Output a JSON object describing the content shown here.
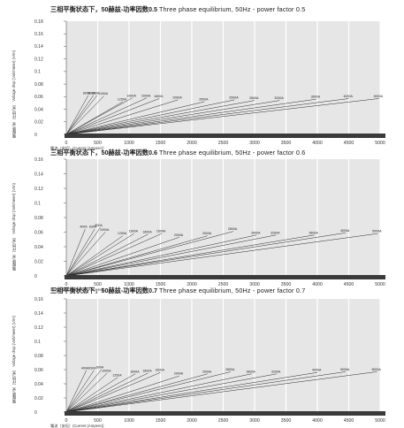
{
  "chart_data": [
    {
      "type": "line",
      "title_cn": "三相平衡状态下，50赫兹-功率因数0.5",
      "title_en": "Three phase equilibrium, 50Hz - power factor 0.5",
      "ylabel_cn": "電壓降/米（伏特/米）",
      "ylabel_en": "Voltage drop (Volt/meter) (V/m)",
      "xlabel": "電流（安培）(Current (Ampere))",
      "xlim": [
        0,
        5000
      ],
      "ylim": [
        0,
        0.18
      ],
      "xticks": [
        "0",
        "500",
        "1000",
        "1500",
        "2000",
        "2500",
        "3000",
        "3500",
        "4000",
        "4500",
        "5000"
      ],
      "yticks": [
        "0",
        "0.02",
        "0.04",
        "0.06",
        "0.08",
        "0.1",
        "0.12",
        "0.14",
        "0.16",
        "0.18"
      ],
      "series": [
        {
          "name": "800A",
          "x": [
            0,
            350
          ],
          "y": [
            0,
            0.062
          ]
        },
        {
          "name": "630A",
          "x": [
            0,
            430
          ],
          "y": [
            0,
            0.062
          ]
        },
        {
          "name": "800A",
          "x": [
            0,
            490
          ],
          "y": [
            0,
            0.062
          ]
        },
        {
          "name": "1000A",
          "x": [
            0,
            600
          ],
          "y": [
            0,
            0.061
          ]
        },
        {
          "name": "1250A",
          "x": [
            0,
            900
          ],
          "y": [
            0,
            0.052
          ]
        },
        {
          "name": "1600A",
          "x": [
            0,
            1050
          ],
          "y": [
            0,
            0.058
          ]
        },
        {
          "name": "1600A",
          "x": [
            0,
            1280
          ],
          "y": [
            0,
            0.058
          ]
        },
        {
          "name": "1600A",
          "x": [
            0,
            1480
          ],
          "y": [
            0,
            0.057
          ]
        },
        {
          "name": "2000A",
          "x": [
            0,
            1780
          ],
          "y": [
            0,
            0.055
          ]
        },
        {
          "name": "2500A",
          "x": [
            0,
            2200
          ],
          "y": [
            0,
            0.052
          ]
        },
        {
          "name": "2500A",
          "x": [
            0,
            2680
          ],
          "y": [
            0,
            0.055
          ]
        },
        {
          "name": "2800A",
          "x": [
            0,
            3000
          ],
          "y": [
            0,
            0.054
          ]
        },
        {
          "name": "3200A",
          "x": [
            0,
            3400
          ],
          "y": [
            0,
            0.054
          ]
        },
        {
          "name": "3600A",
          "x": [
            0,
            3980
          ],
          "y": [
            0,
            0.056
          ]
        },
        {
          "name": "4000A",
          "x": [
            0,
            4500
          ],
          "y": [
            0,
            0.057
          ]
        },
        {
          "name": "5000A",
          "x": [
            0,
            4980
          ],
          "y": [
            0,
            0.057
          ]
        }
      ]
    },
    {
      "type": "line",
      "title_cn": "三相平衡状态下，50赫兹-功率因数0.6",
      "title_en": "Three phase equilibrium, 50Hz - power factor 0.6",
      "ylabel_cn": "電壓降/米（伏特/米）",
      "ylabel_en": "Voltage drop (Volt/meter) (V/m)",
      "xlabel": "電流（安培）(Current (Ampere))",
      "xlim": [
        0,
        5000
      ],
      "ylim": [
        0,
        0.16
      ],
      "xticks": [
        "0",
        "500",
        "1000",
        "1500",
        "2000",
        "2500",
        "3000",
        "3500",
        "4000",
        "4500",
        "5000"
      ],
      "yticks": [
        "0",
        "0.02",
        "0.04",
        "0.06",
        "0.08",
        "0.1",
        "0.12",
        "0.14",
        "0.16"
      ],
      "series": [
        {
          "name": "400A",
          "x": [
            0,
            300
          ],
          "y": [
            0,
            0.064
          ]
        },
        {
          "name": "630A",
          "x": [
            0,
            450
          ],
          "y": [
            0,
            0.064
          ]
        },
        {
          "name": "800A",
          "x": [
            0,
            540
          ],
          "y": [
            0,
            0.066
          ]
        },
        {
          "name": "1000A",
          "x": [
            0,
            620
          ],
          "y": [
            0,
            0.06
          ]
        },
        {
          "name": "1250A",
          "x": [
            0,
            900
          ],
          "y": [
            0,
            0.055
          ]
        },
        {
          "name": "1600A",
          "x": [
            0,
            1080
          ],
          "y": [
            0,
            0.058
          ]
        },
        {
          "name": "1600A",
          "x": [
            0,
            1300
          ],
          "y": [
            0,
            0.057
          ]
        },
        {
          "name": "1600A",
          "x": [
            0,
            1520
          ],
          "y": [
            0,
            0.058
          ]
        },
        {
          "name": "2000A",
          "x": [
            0,
            1800
          ],
          "y": [
            0,
            0.053
          ]
        },
        {
          "name": "2500A",
          "x": [
            0,
            2250
          ],
          "y": [
            0,
            0.055
          ]
        },
        {
          "name": "2800A",
          "x": [
            0,
            2660
          ],
          "y": [
            0,
            0.061
          ]
        },
        {
          "name": "2800A",
          "x": [
            0,
            3030
          ],
          "y": [
            0,
            0.056
          ]
        },
        {
          "name": "3200A",
          "x": [
            0,
            3340
          ],
          "y": [
            0,
            0.056
          ]
        },
        {
          "name": "3600A",
          "x": [
            0,
            3950
          ],
          "y": [
            0,
            0.056
          ]
        },
        {
          "name": "4000A",
          "x": [
            0,
            4450
          ],
          "y": [
            0,
            0.059
          ]
        },
        {
          "name": "5000A",
          "x": [
            0,
            4960
          ],
          "y": [
            0,
            0.058
          ]
        }
      ]
    },
    {
      "type": "line",
      "title_cn": "三相平衡状态下，50赫兹-功率因数0.7",
      "title_en": "Three phase equilibrium, 50Hz - power factor 0.7",
      "ylabel_cn": "電壓降/米（伏特/米）",
      "ylabel_en": "Voltage drop (Volt/meter) (V/m)",
      "xlabel": "電流（安培）(Current (Ampere))",
      "xlim": [
        0,
        5000
      ],
      "ylim": [
        0,
        0.16
      ],
      "xticks": [
        "0",
        "500",
        "1000",
        "1500",
        "2000",
        "2500",
        "3000",
        "3500",
        "4000",
        "4500",
        "5000"
      ],
      "yticks": [
        "0",
        "0.02",
        "0.04",
        "0.06",
        "0.08",
        "0.1",
        "0.12",
        "0.14",
        "0.16"
      ],
      "series": [
        {
          "name": "400A",
          "x": [
            0,
            320
          ],
          "y": [
            0,
            0.059
          ]
        },
        {
          "name": "630A",
          "x": [
            0,
            440
          ],
          "y": [
            0,
            0.059
          ]
        },
        {
          "name": "800A",
          "x": [
            0,
            560
          ],
          "y": [
            0,
            0.06
          ]
        },
        {
          "name": "1000A",
          "x": [
            0,
            650
          ],
          "y": [
            0,
            0.055
          ]
        },
        {
          "name": "1250A",
          "x": [
            0,
            820
          ],
          "y": [
            0,
            0.049
          ]
        },
        {
          "name": "1600A",
          "x": [
            0,
            1100
          ],
          "y": [
            0,
            0.054
          ]
        },
        {
          "name": "1600A",
          "x": [
            0,
            1300
          ],
          "y": [
            0,
            0.055
          ]
        },
        {
          "name": "1600A",
          "x": [
            0,
            1500
          ],
          "y": [
            0,
            0.056
          ]
        },
        {
          "name": "2000A",
          "x": [
            0,
            1800
          ],
          "y": [
            0,
            0.051
          ]
        },
        {
          "name": "2500A",
          "x": [
            0,
            2250
          ],
          "y": [
            0,
            0.054
          ]
        },
        {
          "name": "2800A",
          "x": [
            0,
            2620
          ],
          "y": [
            0,
            0.057
          ]
        },
        {
          "name": "2800A",
          "x": [
            0,
            2950
          ],
          "y": [
            0,
            0.054
          ]
        },
        {
          "name": "3200A",
          "x": [
            0,
            3350
          ],
          "y": [
            0,
            0.054
          ]
        },
        {
          "name": "4000A",
          "x": [
            0,
            4000
          ],
          "y": [
            0,
            0.056
          ]
        },
        {
          "name": "5000A",
          "x": [
            0,
            4450
          ],
          "y": [
            0,
            0.057
          ]
        },
        {
          "name": "5000A",
          "x": [
            0,
            4950
          ],
          "y": [
            0,
            0.057
          ]
        }
      ]
    }
  ]
}
